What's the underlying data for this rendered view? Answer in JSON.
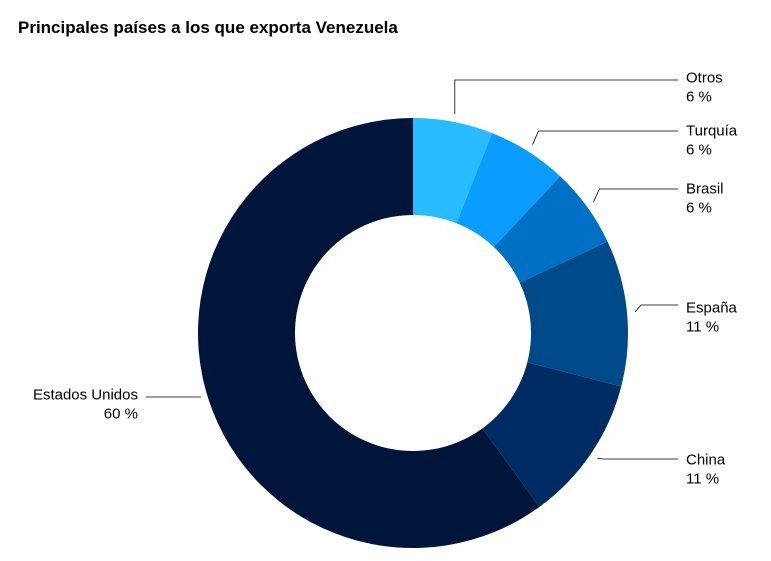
{
  "chart_data": {
    "type": "pie",
    "title": "Principales países a los que exporta Venezuela",
    "donut": true,
    "slices": [
      {
        "label": "Otros",
        "value": 6,
        "value_label": "6 %",
        "color": "#29bbff"
      },
      {
        "label": "Turquía",
        "value": 6,
        "value_label": "6 %",
        "color": "#0b9cff"
      },
      {
        "label": "Brasil",
        "value": 6,
        "value_label": "6 %",
        "color": "#0070c4"
      },
      {
        "label": "España",
        "value": 11,
        "value_label": "11 %",
        "color": "#004a8a"
      },
      {
        "label": "China",
        "value": 11,
        "value_label": "11 %",
        "color": "#002c63"
      },
      {
        "label": "Estados Unidos",
        "value": 60,
        "value_label": "60 %",
        "color": "#00153a"
      }
    ]
  }
}
